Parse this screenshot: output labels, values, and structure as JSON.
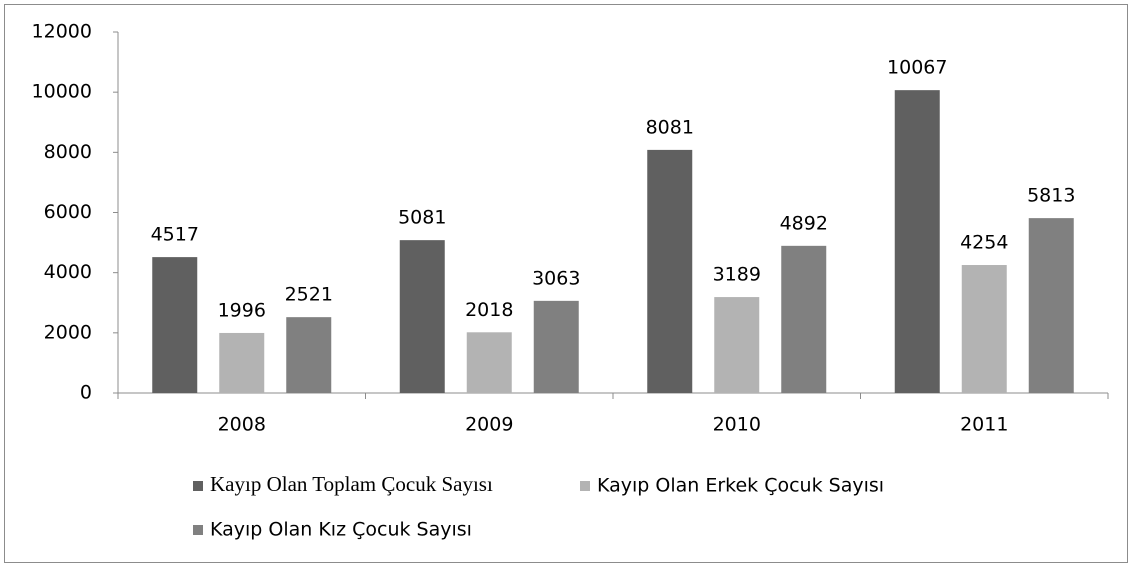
{
  "chart_data": {
    "type": "bar",
    "categories": [
      "2008",
      "2009",
      "2010",
      "2011"
    ],
    "series": [
      {
        "name": "Kayıp Olan Toplam Çocuk Sayısı",
        "color": "#606060",
        "values": [
          4517,
          5081,
          8081,
          10067
        ]
      },
      {
        "name": "Kayıp Olan Erkek Çocuk Sayısı",
        "color": "#b3b3b3",
        "values": [
          1996,
          2018,
          3189,
          4254
        ]
      },
      {
        "name": "Kayıp Olan Kız Çocuk Sayısı",
        "color": "#808080",
        "values": [
          2521,
          3063,
          4892,
          5813
        ]
      }
    ],
    "ylim": [
      0,
      12000
    ],
    "yticks": [
      0,
      2000,
      4000,
      6000,
      8000,
      10000,
      12000
    ],
    "grid": false,
    "legend": "bottom"
  }
}
